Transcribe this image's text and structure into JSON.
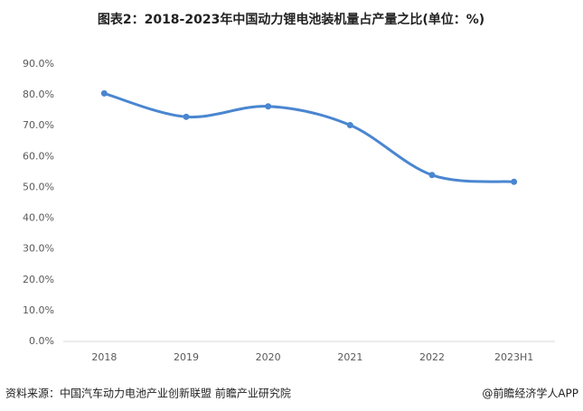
{
  "chart_data": {
    "type": "line",
    "title": "图表2：2018-2023年中国动力锂电池装机量占产量之比(单位：%)",
    "categories": [
      "2018",
      "2019",
      "2020",
      "2021",
      "2022",
      "2023H1"
    ],
    "values": [
      80.5,
      72.9,
      76.3,
      70.2,
      54.0,
      51.8
    ],
    "color": "#4a86d0",
    "smooth": true,
    "grid": false,
    "ylim": [
      0,
      90
    ],
    "yticks": [
      {
        "value": 0,
        "label": "0.0%"
      },
      {
        "value": 10,
        "label": "10.0%"
      },
      {
        "value": 20,
        "label": "20.0%"
      },
      {
        "value": 30,
        "label": "30.0%"
      },
      {
        "value": 40,
        "label": "40.0%"
      },
      {
        "value": 50,
        "label": "50.0%"
      },
      {
        "value": 60,
        "label": "60.0%"
      },
      {
        "value": 70,
        "label": "70.0%"
      },
      {
        "value": 80,
        "label": "80.0%"
      },
      {
        "value": 90,
        "label": "90.0%"
      }
    ]
  },
  "footer": {
    "source": "资料来源：中国汽车动力电池产业创新联盟 前瞻产业研究院",
    "credit": "@前瞻经济学人APP"
  }
}
